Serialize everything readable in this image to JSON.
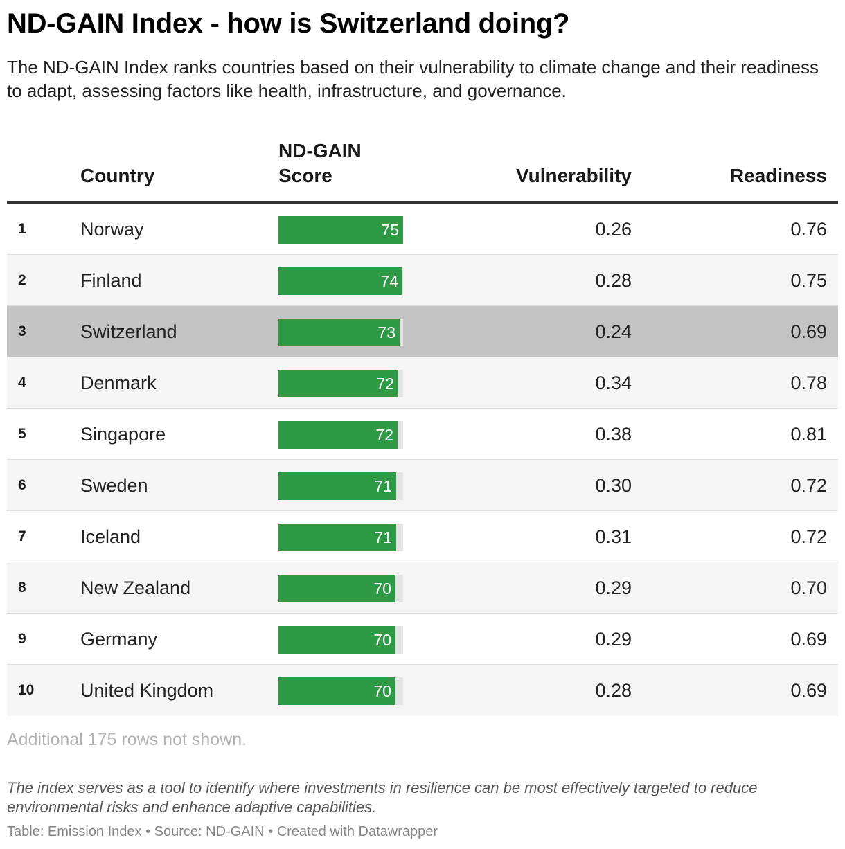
{
  "title": "ND-GAIN Index - how is Switzerland doing?",
  "subtitle": "The ND-GAIN Index ranks countries based on their vulnerability to climate change and their readiness to adapt, assessing factors like health, infrastructure, and governance.",
  "columns": {
    "country": "Country",
    "score_line1": "ND-GAIN",
    "score_line2": "Score",
    "vulnerability": "Vulnerability",
    "readiness": "Readiness"
  },
  "highlight_country": "Switzerland",
  "colors": {
    "bar": "#2e9a46",
    "bar_track": "#e4e4e4",
    "highlight_row": "#c4c4c4"
  },
  "rows_note": "Additional 175 rows not shown.",
  "notes": "The index serves as a tool to identify where investments in resilience can be most effectively targeted to reduce environmental risks and enhance adaptive capabilities.",
  "footer": "Table: Emission Index • Source: ND-GAIN • Created with Datawrapper",
  "chart_data": {
    "type": "table",
    "score_max": 75,
    "columns": [
      "",
      "Country",
      "ND-GAIN Score",
      "Vulnerability",
      "Readiness"
    ],
    "rows": [
      {
        "rank": "1",
        "country": "Norway",
        "score": 75,
        "score_label": "75",
        "vulnerability": "0.26",
        "readiness": "0.76"
      },
      {
        "rank": "2",
        "country": "Finland",
        "score": 74.5,
        "score_label": "74",
        "vulnerability": "0.28",
        "readiness": "0.75"
      },
      {
        "rank": "3",
        "country": "Switzerland",
        "score": 73,
        "score_label": "73",
        "vulnerability": "0.24",
        "readiness": "0.69"
      },
      {
        "rank": "4",
        "country": "Denmark",
        "score": 72,
        "score_label": "72",
        "vulnerability": "0.34",
        "readiness": "0.78"
      },
      {
        "rank": "5",
        "country": "Singapore",
        "score": 71.5,
        "score_label": "72",
        "vulnerability": "0.38",
        "readiness": "0.81"
      },
      {
        "rank": "6",
        "country": "Sweden",
        "score": 71,
        "score_label": "71",
        "vulnerability": "0.30",
        "readiness": "0.72"
      },
      {
        "rank": "7",
        "country": "Iceland",
        "score": 71,
        "score_label": "71",
        "vulnerability": "0.31",
        "readiness": "0.72"
      },
      {
        "rank": "8",
        "country": "New Zealand",
        "score": 70.3,
        "score_label": "70",
        "vulnerability": "0.29",
        "readiness": "0.70"
      },
      {
        "rank": "9",
        "country": "Germany",
        "score": 70.3,
        "score_label": "70",
        "vulnerability": "0.29",
        "readiness": "0.69"
      },
      {
        "rank": "10",
        "country": "United Kingdom",
        "score": 70.3,
        "score_label": "70",
        "vulnerability": "0.28",
        "readiness": "0.69"
      }
    ]
  }
}
